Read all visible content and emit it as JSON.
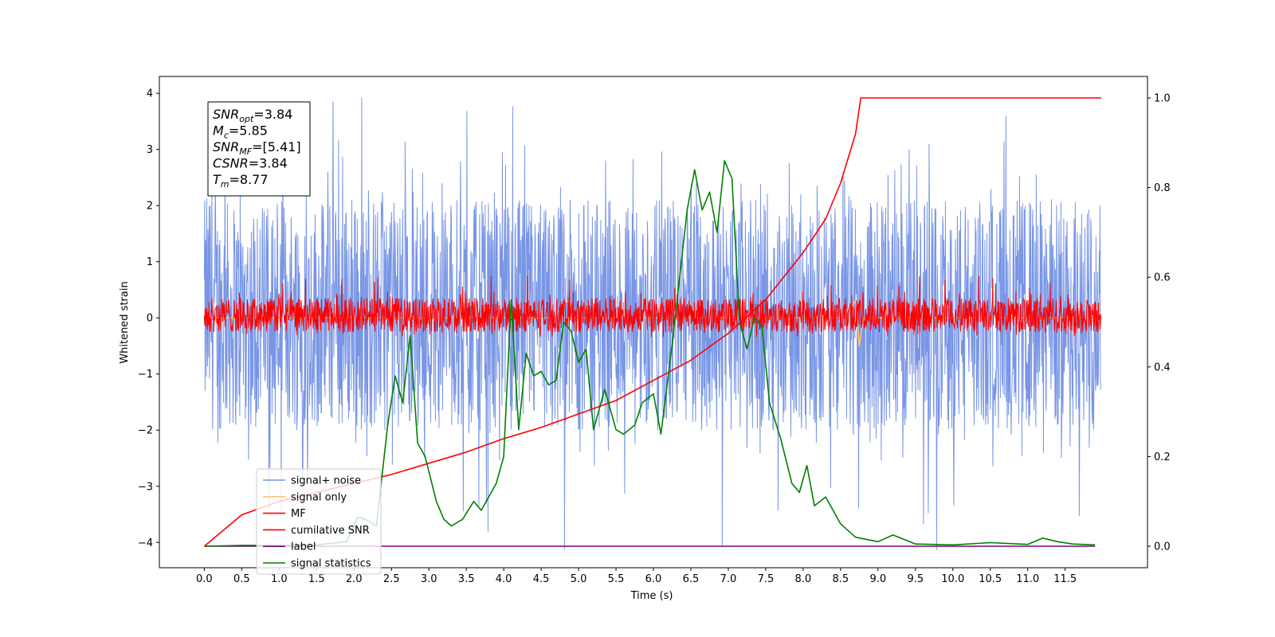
{
  "chart_data": {
    "type": "line",
    "xlabel": "Time (s)",
    "ylabel": "Whitened strain",
    "xlim": [
      -0.6,
      12.6
    ],
    "ylim": [
      -4.45,
      4.3
    ],
    "ylim_right": [
      -0.048,
      1.048
    ],
    "x_ticks": [
      "0.0",
      "0.5",
      "1.0",
      "1.5",
      "2.0",
      "2.5",
      "3.0",
      "3.5",
      "4.0",
      "4.5",
      "5.0",
      "5.5",
      "6.0",
      "6.5",
      "7.0",
      "7.5",
      "8.0",
      "8.5",
      "9.0",
      "9.5",
      "10.0",
      "10.5",
      "11.0",
      "11.5"
    ],
    "x_tick_values": [
      0,
      0.5,
      1,
      1.5,
      2,
      2.5,
      3,
      3.5,
      4,
      4.5,
      5,
      5.5,
      6,
      6.5,
      7,
      7.5,
      8,
      8.5,
      9,
      9.5,
      10,
      10.5,
      11,
      11.5
    ],
    "y_ticks": [
      -4,
      -3,
      -2,
      -1,
      0,
      1,
      2,
      3,
      4
    ],
    "y_ticks_right": [
      "0.0",
      "0.2",
      "0.4",
      "0.6",
      "0.8",
      "1.0"
    ],
    "y_tick_values_right": [
      0,
      0.2,
      0.4,
      0.6,
      0.8,
      1.0
    ],
    "grid": false,
    "legend_position": "lower-left",
    "annotation": {
      "lines": [
        {
          "base": "SNR",
          "sub": "opt",
          "value": "=3.84"
        },
        {
          "base": "M",
          "sub": "c",
          "value": "=5.85"
        },
        {
          "base": "SNR",
          "sub": "MF",
          "value": "=[5.41]"
        },
        {
          "base": "CSNR",
          "sub": "",
          "value": "=3.84"
        },
        {
          "base": "T",
          "sub": "m",
          "value": "=8.77"
        }
      ]
    },
    "series": [
      {
        "name": "signal+ noise",
        "axis": "left",
        "color": "#7895e6",
        "style": "noise",
        "x_range": [
          0,
          11.98
        ],
        "center": 0.0,
        "band": [
          -2.0,
          2.1
        ],
        "extremes": [
          -4.15,
          3.95
        ]
      },
      {
        "name": "signal only",
        "axis": "left",
        "color": "#ffc470",
        "style": "line",
        "x": [
          0,
          8.5,
          8.7,
          8.75,
          8.8,
          12
        ],
        "y": [
          0,
          0,
          0.3,
          -0.5,
          0,
          0
        ]
      },
      {
        "name": "MF",
        "axis": "left",
        "color": "#ff0000",
        "style": "noise",
        "x_range": [
          0,
          11.98
        ],
        "center": 0.0,
        "band": [
          -0.25,
          0.35
        ],
        "extremes": [
          -0.3,
          0.75
        ]
      },
      {
        "name": "cumilative SNR",
        "axis": "right",
        "color": "#ff0000",
        "style": "line",
        "x": [
          0,
          0.5,
          1.0,
          1.5,
          2.0,
          2.5,
          3.0,
          3.5,
          4.0,
          4.5,
          5.0,
          5.5,
          6.0,
          6.5,
          7.0,
          7.5,
          8.0,
          8.3,
          8.5,
          8.7,
          8.77,
          9.0,
          10.0,
          11.0,
          11.98
        ],
        "y": [
          0.0,
          0.07,
          0.1,
          0.12,
          0.14,
          0.16,
          0.185,
          0.21,
          0.24,
          0.265,
          0.295,
          0.325,
          0.37,
          0.415,
          0.475,
          0.55,
          0.655,
          0.73,
          0.81,
          0.92,
          1.0,
          1.0,
          1.0,
          1.0,
          1.0
        ]
      },
      {
        "name": "label",
        "axis": "right",
        "color": "#800080",
        "style": "line",
        "x": [
          0,
          11.9
        ],
        "y": [
          0,
          0
        ]
      },
      {
        "name": "signal statistics",
        "axis": "right",
        "color": "#008000",
        "style": "line",
        "x": [
          0,
          0.5,
          1.0,
          1.5,
          1.9,
          2.05,
          2.15,
          2.3,
          2.45,
          2.55,
          2.65,
          2.75,
          2.85,
          2.95,
          3.1,
          3.2,
          3.3,
          3.45,
          3.6,
          3.7,
          3.8,
          3.9,
          4.0,
          4.1,
          4.2,
          4.3,
          4.4,
          4.5,
          4.6,
          4.7,
          4.8,
          4.9,
          5.0,
          5.1,
          5.2,
          5.35,
          5.5,
          5.6,
          5.75,
          5.85,
          6.0,
          6.1,
          6.25,
          6.35,
          6.45,
          6.55,
          6.65,
          6.75,
          6.85,
          6.95,
          7.05,
          7.15,
          7.25,
          7.35,
          7.45,
          7.55,
          7.7,
          7.85,
          7.95,
          8.05,
          8.15,
          8.3,
          8.5,
          8.7,
          9.0,
          9.2,
          9.5,
          10.0,
          10.5,
          11.0,
          11.2,
          11.4,
          11.6,
          11.9
        ],
        "y": [
          0.0,
          0.002,
          0.002,
          0.003,
          0.01,
          0.065,
          0.06,
          0.045,
          0.27,
          0.38,
          0.32,
          0.47,
          0.23,
          0.2,
          0.1,
          0.06,
          0.045,
          0.06,
          0.1,
          0.08,
          0.11,
          0.14,
          0.2,
          0.55,
          0.26,
          0.43,
          0.38,
          0.39,
          0.36,
          0.37,
          0.5,
          0.48,
          0.41,
          0.44,
          0.26,
          0.35,
          0.26,
          0.25,
          0.27,
          0.32,
          0.34,
          0.25,
          0.45,
          0.6,
          0.75,
          0.84,
          0.75,
          0.79,
          0.7,
          0.86,
          0.82,
          0.5,
          0.44,
          0.51,
          0.49,
          0.32,
          0.24,
          0.14,
          0.12,
          0.18,
          0.09,
          0.11,
          0.05,
          0.02,
          0.01,
          0.025,
          0.005,
          0.003,
          0.008,
          0.004,
          0.018,
          0.01,
          0.005,
          0.003
        ]
      }
    ]
  }
}
